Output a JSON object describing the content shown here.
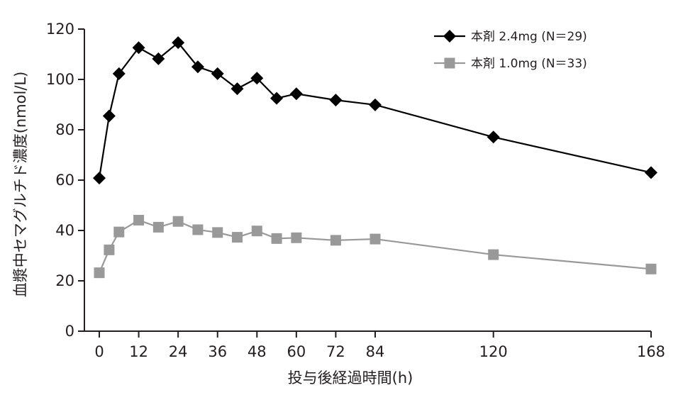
{
  "chart_data": {
    "type": "line",
    "title": "",
    "xlabel": "投与後経過時間(h)",
    "ylabel": "血漿中セマグルチド濃度(nmol/L)",
    "xlim": [
      0,
      168
    ],
    "ylim": [
      0,
      120
    ],
    "xticks": [
      0,
      12,
      24,
      36,
      48,
      60,
      72,
      84,
      120,
      168
    ],
    "yticks": [
      0,
      20,
      40,
      60,
      80,
      100,
      120
    ],
    "legend_position": "top-right",
    "grid": false,
    "series": [
      {
        "name": "本剤 2.4mg (N＝29)",
        "marker": "diamond",
        "color": "#000000",
        "x": [
          0,
          3,
          6,
          12,
          18,
          24,
          30,
          36,
          42,
          48,
          54,
          60,
          72,
          84,
          120,
          168
        ],
        "y": [
          60.8,
          85.5,
          102.3,
          112.6,
          108.2,
          114.6,
          105.0,
          102.3,
          96.3,
          100.5,
          92.5,
          94.3,
          91.8,
          89.9,
          77.1,
          63.0
        ]
      },
      {
        "name": "本剤 1.0mg (N＝33)",
        "marker": "square",
        "color": "#999999",
        "x": [
          0,
          3,
          6,
          12,
          18,
          24,
          30,
          36,
          42,
          48,
          54,
          60,
          72,
          84,
          120,
          168
        ],
        "y": [
          23.2,
          32.3,
          39.4,
          44.1,
          41.3,
          43.6,
          40.3,
          39.2,
          37.3,
          39.8,
          36.8,
          37.1,
          36.1,
          36.6,
          30.4,
          24.7
        ]
      }
    ]
  }
}
